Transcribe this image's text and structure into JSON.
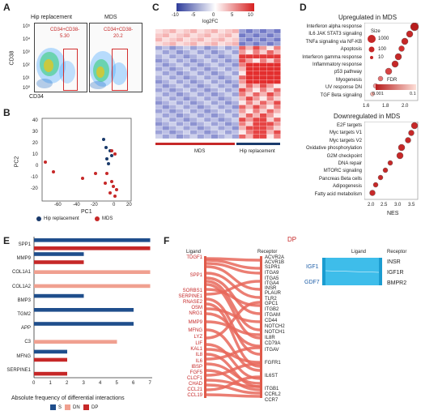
{
  "panels": {
    "a": "A",
    "b": "B",
    "c": "C",
    "d": "D",
    "e": "E",
    "f": "F"
  },
  "panelA": {
    "titles": [
      "Hip replacement",
      "MDS"
    ],
    "gate_label": "CD34+CD38-",
    "gate_values": [
      "5.30",
      "20.2"
    ],
    "ylabel": "CD38",
    "xlabel": "CD34",
    "yticks": [
      "10⁵",
      "10⁴",
      "10³",
      "10²",
      "10¹",
      "10⁰"
    ]
  },
  "panelB": {
    "xlabel": "PC1",
    "ylabel": "PC2",
    "xticks": [
      "-60",
      "-40",
      "-20",
      "0",
      "20"
    ],
    "yticks": [
      "40",
      "30",
      "20",
      "10",
      "0",
      "-10",
      "-20"
    ],
    "legend": [
      "Hip replacement",
      "MDS"
    ],
    "colors": {
      "hip": "#1a3a6b",
      "mds": "#c62828"
    }
  },
  "panelC": {
    "scale_ticks": [
      "-10",
      "-5",
      "0",
      "5",
      "10"
    ],
    "scale_label": "log2FC",
    "groups": [
      "MDS",
      "Hip replacement"
    ]
  },
  "panelD": {
    "up_title": "Upregulated in MDS",
    "down_title": "Downregulated in MDS",
    "up_terms": [
      "Interferon alpha response",
      "IL6 JAK STAT3 signaling",
      "TNFa signaling via NF-KB",
      "Apoptosis",
      "Interferon gamma response",
      "Inflammatory response",
      "p53 pathway",
      "Myogenesis",
      "UV response DN",
      "TGF Beta signaling"
    ],
    "down_terms": [
      "E2F targets",
      "Myc targets V1",
      "Myc targets V2",
      "Oxidative phosphorylation",
      "G2M checkpoint",
      "DNA repair",
      "MTORC signaling",
      "Pancreas Beta cells",
      "Adipogenesis",
      "Fatty acid metabolism"
    ],
    "size_title": "Size",
    "size_labels": [
      "1000",
      "100",
      "10"
    ],
    "fdr_title": "FDR",
    "fdr_labels": [
      "0.001",
      "0.1"
    ],
    "up_xticks": [
      "1.6",
      "1.8",
      "2.0"
    ],
    "down_xticks": [
      "2.0",
      "2.5",
      "3.0",
      "3.5"
    ],
    "xlabel": "NES"
  },
  "panelE": {
    "categories": [
      "SPP1",
      "MMP9",
      "COL1A1",
      "COL1A2",
      "BMP3",
      "TGM2",
      "APP",
      "C3",
      "MFNG",
      "SERPINE1"
    ],
    "xlabel": "Absolute frequency of differential interactions",
    "xticks": [
      "0",
      "1",
      "2",
      "3",
      "4",
      "5",
      "6",
      "7"
    ],
    "legend": [
      "S",
      "DN",
      "DP"
    ],
    "colors": {
      "S": "#1f4e8c",
      "DN": "#f0a090",
      "DP": "#c62828"
    }
  },
  "panelF": {
    "title": "DP",
    "ligand_header": "Ligand",
    "receptor_header": "Receptor",
    "ligands": [
      "TDGF1",
      "SPP1",
      "SORBS1",
      "SERPINE1",
      "RNASE2",
      "OSM",
      "NRG1",
      "MMP9",
      "MFNG",
      "LYZ",
      "LIF",
      "KAL1",
      "IL8",
      "IL6",
      "IBSP",
      "FGF5",
      "CLCF1",
      "CHAD",
      "CCL21",
      "CCL19"
    ],
    "receptors": [
      "ACVR2A",
      "ACVR1B",
      "S1PR1",
      "ITGA9",
      "ITGA5",
      "ITGA4",
      "INSR",
      "PLAUR",
      "TLR2",
      "GPC1",
      "ITGB2",
      "ITGAM",
      "CD44",
      "NOTCH2",
      "NOTCH1",
      "IL8R",
      "CD79A",
      "ITGAV",
      "FGFR1",
      "IL6ST",
      "ITGB1",
      "CCRL2",
      "CCR7"
    ],
    "ligands2": [
      "IGF1",
      "GDF7"
    ],
    "receptors2": [
      "INSR",
      "IGF1R",
      "BMPR2"
    ]
  }
}
